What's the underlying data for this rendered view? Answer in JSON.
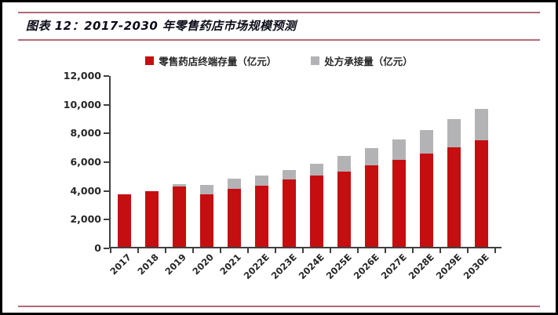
{
  "header": {
    "title": "图表 12：2017-2030 年零售药店市场规模预测"
  },
  "style": {
    "rule_color": "#B06A78",
    "axis_color": "#404040",
    "bar_red": "#C50E10",
    "bar_gray": "#B3B3B5"
  },
  "chart_data": {
    "type": "bar",
    "stacked": true,
    "title": "图表 12：2017-2030 年零售药店市场规模预测",
    "xlabel": "",
    "ylabel": "",
    "unit": "亿元",
    "categories": [
      "2017",
      "2018",
      "2019",
      "2020",
      "2021",
      "2022E",
      "2023E",
      "2024E",
      "2025E",
      "2026E",
      "2027E",
      "2028E",
      "2029E",
      "2030E"
    ],
    "series": [
      {
        "name": "零售药店终端存量（亿元）",
        "color": "#C50E10",
        "values": [
          3650,
          3900,
          4200,
          3650,
          4050,
          4250,
          4700,
          4950,
          5250,
          5700,
          6050,
          6500,
          6950,
          7400
        ]
      },
      {
        "name": "处方承接量（亿元）",
        "color": "#B3B3B5",
        "values": [
          0,
          0,
          150,
          650,
          700,
          700,
          650,
          850,
          1100,
          1200,
          1450,
          1650,
          1950,
          2200
        ]
      }
    ],
    "ylim": [
      0,
      12000
    ],
    "ytick_step": 2000,
    "ytick_labels": [
      "0",
      "2,000",
      "4,000",
      "6,000",
      "8,000",
      "10,000",
      "12,000"
    ],
    "grid": false,
    "legend_position": "top"
  }
}
